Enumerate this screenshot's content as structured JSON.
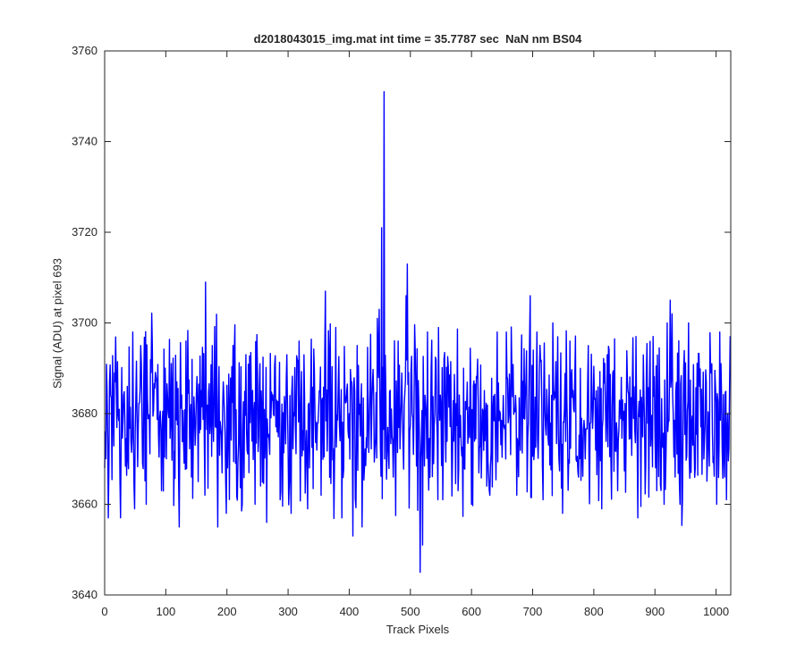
{
  "chart_data": {
    "type": "line",
    "title": "d2018043015_img.mat int time = 35.7787 sec  NaN nm BS04",
    "xlabel": "Track Pixels",
    "ylabel": "Signal (ADU) at pixel 693",
    "xlim": [
      0,
      1024
    ],
    "ylim": [
      3640,
      3760
    ],
    "xticks": [
      0,
      100,
      200,
      300,
      400,
      500,
      600,
      700,
      800,
      900,
      1000
    ],
    "yticks": [
      3640,
      3660,
      3680,
      3700,
      3720,
      3740,
      3760
    ],
    "grid": false,
    "line_color": "#0000ff",
    "noise_model": {
      "count": 1024,
      "mean": 3679,
      "amplitude": 9,
      "clip": [
        3653,
        3707
      ]
    },
    "series": [
      {
        "values_at": [
          [
            0,
            3668
          ],
          [
            10,
            3684
          ],
          [
            22,
            3680
          ],
          [
            26,
            3657
          ],
          [
            37,
            3686
          ],
          [
            46,
            3698
          ],
          [
            49,
            3659
          ],
          [
            59,
            3695
          ],
          [
            68,
            3660
          ],
          [
            93,
            3663
          ],
          [
            99,
            3690
          ],
          [
            122,
            3655
          ],
          [
            133,
            3696
          ],
          [
            142,
            3666
          ],
          [
            153,
            3665
          ],
          [
            164,
            3662
          ],
          [
            165,
            3709
          ],
          [
            176,
            3695
          ],
          [
            185,
            3655
          ],
          [
            194,
            3687
          ],
          [
            199,
            3658
          ],
          [
            212,
            3693
          ],
          [
            225,
            3660
          ],
          [
            231,
            3693
          ],
          [
            246,
            3660
          ],
          [
            254,
            3691
          ],
          [
            265,
            3656
          ],
          [
            287,
            3661
          ],
          [
            298,
            3693
          ],
          [
            305,
            3658
          ],
          [
            318,
            3696
          ],
          [
            332,
            3659
          ],
          [
            354,
            3662
          ],
          [
            361,
            3707
          ],
          [
            378,
            3699
          ],
          [
            388,
            3657
          ],
          [
            406,
            3653
          ],
          [
            413,
            3695
          ],
          [
            421,
            3655
          ],
          [
            446,
            3701
          ],
          [
            449,
            3703
          ],
          [
            453,
            3721
          ],
          [
            457,
            3751
          ],
          [
            462,
            3672
          ],
          [
            472,
            3666
          ],
          [
            480,
            3696
          ],
          [
            493,
            3706
          ],
          [
            495,
            3713
          ],
          [
            505,
            3671
          ],
          [
            516,
            3645
          ],
          [
            520,
            3651
          ],
          [
            528,
            3698
          ],
          [
            534,
            3690
          ],
          [
            546,
            3699
          ],
          [
            553,
            3661
          ],
          [
            578,
            3663
          ],
          [
            587,
            3690
          ],
          [
            600,
            3660
          ],
          [
            610,
            3692
          ],
          [
            625,
            3664
          ],
          [
            642,
            3698
          ],
          [
            657,
            3698
          ],
          [
            674,
            3662
          ],
          [
            696,
            3706
          ],
          [
            701,
            3694
          ],
          [
            707,
            3698
          ],
          [
            717,
            3661
          ],
          [
            749,
            3658
          ],
          [
            761,
            3696
          ],
          [
            775,
            3666
          ],
          [
            791,
            3695
          ],
          [
            813,
            3659
          ],
          [
            822,
            3693
          ],
          [
            839,
            3663
          ],
          [
            869,
            3697
          ],
          [
            872,
            3657
          ],
          [
            897,
            3697
          ],
          [
            903,
            3663
          ],
          [
            915,
            3660
          ],
          [
            920,
            3700
          ],
          [
            925,
            3705
          ],
          [
            928,
            3702
          ],
          [
            933,
            3666
          ],
          [
            941,
            3660
          ],
          [
            955,
            3700
          ],
          [
            966,
            3668
          ],
          [
            980,
            3670
          ],
          [
            993,
            3691
          ],
          [
            1001,
            3660
          ],
          [
            1006,
            3698
          ],
          [
            1014,
            3666
          ],
          [
            1019,
            3680
          ]
        ]
      }
    ]
  }
}
